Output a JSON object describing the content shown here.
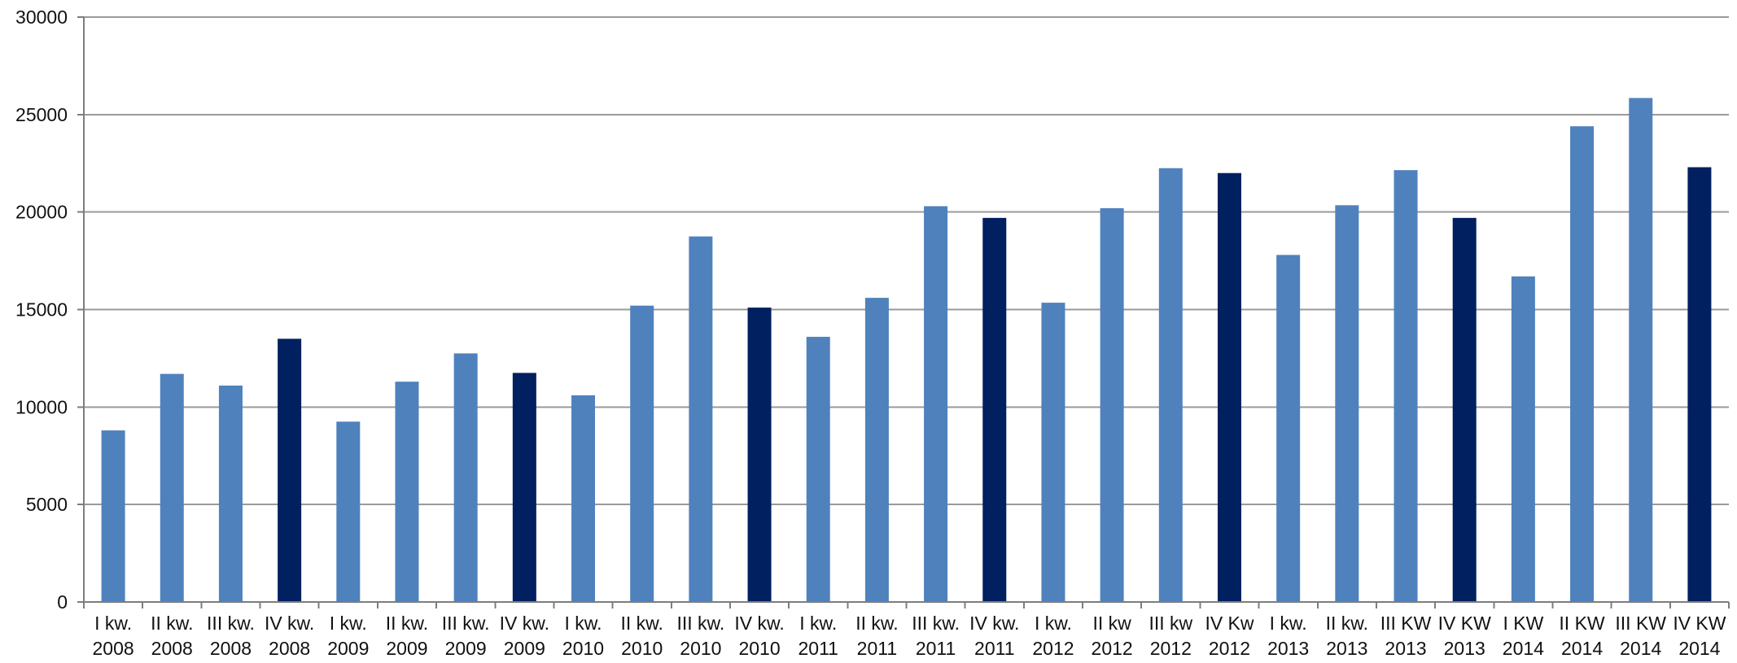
{
  "chart_data": {
    "type": "bar",
    "ylim": [
      0,
      30000
    ],
    "yticks": [
      0,
      5000,
      10000,
      15000,
      20000,
      25000,
      30000
    ],
    "grid": true,
    "legend": "none",
    "categories": [
      [
        "I kw.",
        "2008"
      ],
      [
        "II kw.",
        "2008"
      ],
      [
        "III kw.",
        "2008"
      ],
      [
        "IV kw.",
        "2008"
      ],
      [
        "I kw.",
        "2009"
      ],
      [
        "II kw.",
        "2009"
      ],
      [
        "III kw.",
        "2009"
      ],
      [
        "IV kw.",
        "2009"
      ],
      [
        "I kw.",
        "2010"
      ],
      [
        "II kw.",
        "2010"
      ],
      [
        "III kw.",
        "2010"
      ],
      [
        "IV kw.",
        "2010"
      ],
      [
        "I kw.",
        "2011"
      ],
      [
        "II kw.",
        "2011"
      ],
      [
        "III kw.",
        "2011"
      ],
      [
        "IV kw.",
        "2011"
      ],
      [
        "I kw.",
        "2012"
      ],
      [
        "II kw",
        "2012"
      ],
      [
        "III kw",
        "2012"
      ],
      [
        "IV Kw",
        "2012"
      ],
      [
        "I kw.",
        "2013"
      ],
      [
        "II kw.",
        "2013"
      ],
      [
        "III KW",
        "2013"
      ],
      [
        "IV KW",
        "2013"
      ],
      [
        "I KW",
        "2014"
      ],
      [
        "II KW",
        "2014"
      ],
      [
        "III KW",
        "2014"
      ],
      [
        "IV KW",
        "2014"
      ]
    ],
    "values": [
      8800,
      11700,
      11100,
      13500,
      9250,
      11300,
      12750,
      11750,
      10600,
      15200,
      18750,
      15100,
      13600,
      15600,
      20300,
      19700,
      15350,
      20200,
      22250,
      22000,
      17800,
      20350,
      22150,
      19700,
      16700,
      24400,
      25850,
      22300
    ],
    "colors": {
      "q1_q3": "#4f81bd",
      "q4": "#002060"
    },
    "highlight_pattern": [
      "q1_q3",
      "q1_q3",
      "q1_q3",
      "q4"
    ]
  }
}
